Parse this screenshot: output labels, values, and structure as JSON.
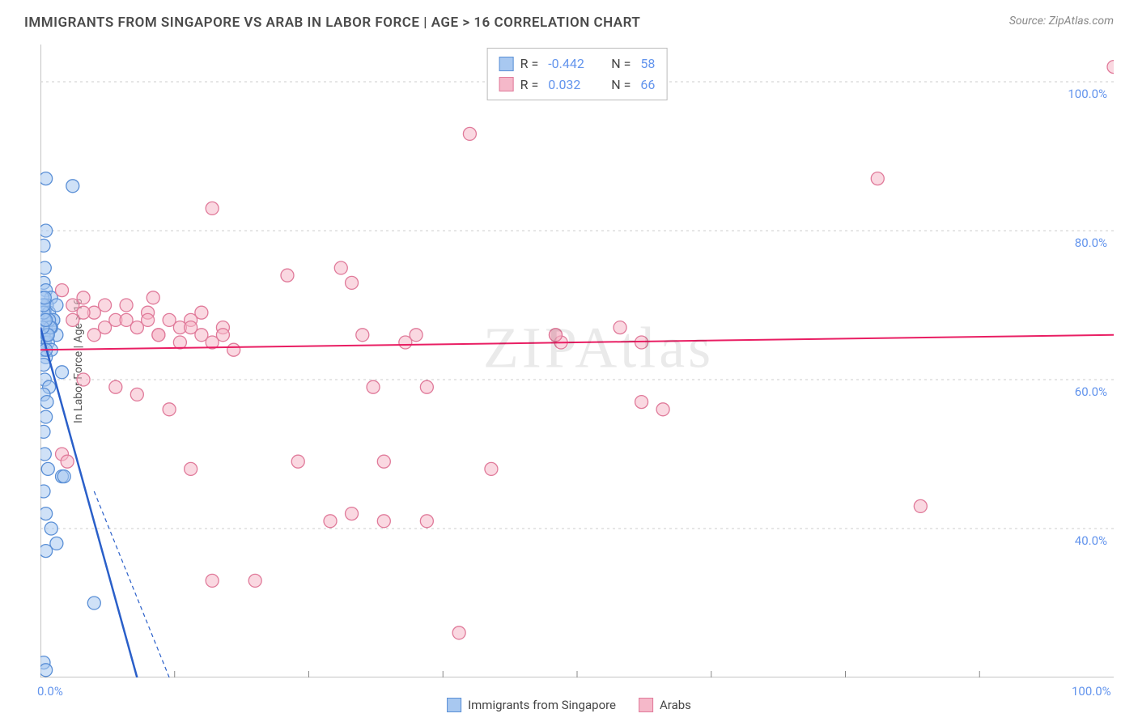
{
  "title": "IMMIGRANTS FROM SINGAPORE VS ARAB IN LABOR FORCE | AGE > 16 CORRELATION CHART",
  "source_label": "Source: ZipAtlas.com",
  "y_axis_label": "In Labor Force | Age > 16",
  "watermark": "ZIPAtlas",
  "chart": {
    "type": "scatter",
    "background_color": "#ffffff",
    "grid_color": "#cccccc",
    "axis_color": "#888888",
    "tick_label_color": "#6495ed",
    "xlim": [
      0,
      100
    ],
    "ylim": [
      20,
      105
    ],
    "x_ticks": [
      0,
      100
    ],
    "x_tick_labels": [
      "0.0%",
      "100.0%"
    ],
    "x_minor_ticks": [
      12.5,
      25,
      37.5,
      50,
      62.5,
      75,
      87.5
    ],
    "y_ticks": [
      40,
      60,
      80,
      100
    ],
    "y_tick_labels": [
      "40.0%",
      "60.0%",
      "80.0%",
      "100.0%"
    ],
    "series": [
      {
        "name": "Immigrants from Singapore",
        "fill_color": "#a8c8f0",
        "stroke_color": "#5a8fd6",
        "fill_opacity": 0.55,
        "marker_radius": 8,
        "correlation_R": -0.442,
        "correlation_N": 58,
        "trend_line": {
          "x1": 0,
          "y1": 67,
          "x2": 9,
          "y2": 20,
          "color": "#2a5fc9",
          "width": 2.5
        },
        "trend_extrapolation": {
          "x1": 5,
          "y1": 45,
          "x2": 12,
          "y2": 20,
          "color": "#2a5fc9",
          "dash": "5,4",
          "width": 1.2
        },
        "points": [
          [
            0.5,
            87
          ],
          [
            3,
            86
          ],
          [
            0.5,
            80
          ],
          [
            0.3,
            78
          ],
          [
            0.4,
            75
          ],
          [
            0.3,
            73
          ],
          [
            0.5,
            72
          ],
          [
            1,
            71
          ],
          [
            0.2,
            70
          ],
          [
            0.6,
            70
          ],
          [
            0.4,
            69
          ],
          [
            0.8,
            69
          ],
          [
            0.3,
            68
          ],
          [
            1.2,
            68
          ],
          [
            0.5,
            67
          ],
          [
            0.9,
            67
          ],
          [
            0.3,
            66
          ],
          [
            1.5,
            66
          ],
          [
            0.4,
            65
          ],
          [
            0.7,
            65
          ],
          [
            0.2,
            64
          ],
          [
            1,
            64
          ],
          [
            0.5,
            63
          ],
          [
            0.3,
            62
          ],
          [
            2,
            61
          ],
          [
            0.4,
            60
          ],
          [
            0.8,
            59
          ],
          [
            0.3,
            58
          ],
          [
            0.6,
            57
          ],
          [
            1.2,
            68
          ],
          [
            0.5,
            55
          ],
          [
            0.3,
            53
          ],
          [
            1,
            67
          ],
          [
            0.4,
            50
          ],
          [
            0.7,
            48
          ],
          [
            2,
            47
          ],
          [
            2.2,
            47
          ],
          [
            0.3,
            45
          ],
          [
            0.5,
            42
          ],
          [
            1,
            40
          ],
          [
            1.5,
            38
          ],
          [
            0.5,
            37
          ],
          [
            5,
            30
          ],
          [
            0.3,
            22
          ],
          [
            0.5,
            21
          ],
          [
            0.8,
            68
          ],
          [
            1.5,
            70
          ],
          [
            0.2,
            71
          ],
          [
            0.6,
            66
          ],
          [
            0.4,
            68
          ],
          [
            0.3,
            69
          ],
          [
            0.9,
            67
          ],
          [
            0.5,
            64
          ],
          [
            0.3,
            70
          ],
          [
            0.7,
            66
          ],
          [
            0.4,
            71
          ],
          [
            0.2,
            67
          ],
          [
            0.5,
            68
          ]
        ]
      },
      {
        "name": "Arabs",
        "fill_color": "#f5b8c9",
        "stroke_color": "#e07a9a",
        "fill_opacity": 0.55,
        "marker_radius": 8,
        "correlation_R": 0.032,
        "correlation_N": 66,
        "trend_line": {
          "x1": 0,
          "y1": 64,
          "x2": 100,
          "y2": 66,
          "color": "#e91e63",
          "width": 2
        },
        "points": [
          [
            100,
            102
          ],
          [
            40,
            93
          ],
          [
            78,
            87
          ],
          [
            16,
            83
          ],
          [
            23,
            74
          ],
          [
            28,
            75
          ],
          [
            29,
            73
          ],
          [
            2,
            72
          ],
          [
            3,
            70
          ],
          [
            4,
            71
          ],
          [
            5,
            69
          ],
          [
            6,
            70
          ],
          [
            7,
            68
          ],
          [
            8,
            70
          ],
          [
            9,
            67
          ],
          [
            10,
            69
          ],
          [
            10.5,
            71
          ],
          [
            11,
            66
          ],
          [
            12,
            68
          ],
          [
            13,
            67
          ],
          [
            14,
            68
          ],
          [
            15,
            66
          ],
          [
            16,
            65
          ],
          [
            17,
            67
          ],
          [
            18,
            64
          ],
          [
            30,
            66
          ],
          [
            35,
            66
          ],
          [
            34,
            65
          ],
          [
            48,
            66
          ],
          [
            48.5,
            65
          ],
          [
            48,
            66
          ],
          [
            4,
            60
          ],
          [
            7,
            59
          ],
          [
            9,
            58
          ],
          [
            31,
            59
          ],
          [
            36,
            59
          ],
          [
            12,
            56
          ],
          [
            54,
            67
          ],
          [
            56,
            57
          ],
          [
            58,
            56
          ],
          [
            2,
            50
          ],
          [
            2.5,
            49
          ],
          [
            14,
            48
          ],
          [
            24,
            49
          ],
          [
            32,
            49
          ],
          [
            27,
            41
          ],
          [
            29,
            42
          ],
          [
            32,
            41
          ],
          [
            36,
            41
          ],
          [
            42,
            48
          ],
          [
            16,
            33
          ],
          [
            20,
            33
          ],
          [
            82,
            43
          ],
          [
            39,
            26
          ],
          [
            10,
            68
          ],
          [
            11,
            66
          ],
          [
            6,
            67
          ],
          [
            8,
            68
          ],
          [
            5,
            66
          ],
          [
            4,
            69
          ],
          [
            3,
            68
          ],
          [
            13,
            65
          ],
          [
            56,
            65
          ],
          [
            14,
            67
          ],
          [
            15,
            69
          ],
          [
            17,
            66
          ]
        ]
      }
    ],
    "legend_bottom": [
      {
        "label": "Immigrants from Singapore",
        "fill": "#a8c8f0",
        "stroke": "#5a8fd6"
      },
      {
        "label": "Arabs",
        "fill": "#f5b8c9",
        "stroke": "#e07a9a"
      }
    ]
  }
}
